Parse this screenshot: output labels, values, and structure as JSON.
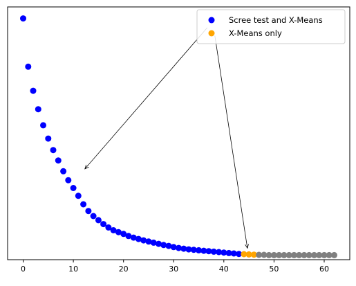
{
  "chart_data": {
    "type": "scatter",
    "title": "",
    "xlabel": "",
    "ylabel": "",
    "xlim": [
      -3.1,
      65.1
    ],
    "ylim": [
      -0.05,
      1.05
    ],
    "xticks": [
      0,
      10,
      20,
      30,
      40,
      50,
      60
    ],
    "grid": false,
    "legend_position": "top-right",
    "series": [
      {
        "name": "Scree test and X-Means",
        "color": "#0000ff",
        "points": [
          [
            0,
            1.0
          ],
          [
            1,
            0.79
          ],
          [
            2,
            0.685
          ],
          [
            3,
            0.605
          ],
          [
            4,
            0.535
          ],
          [
            5,
            0.477
          ],
          [
            6,
            0.427
          ],
          [
            7,
            0.382
          ],
          [
            8,
            0.335
          ],
          [
            9,
            0.296
          ],
          [
            10,
            0.262
          ],
          [
            11,
            0.228
          ],
          [
            12,
            0.191
          ],
          [
            13,
            0.162
          ],
          [
            14,
            0.14
          ],
          [
            15,
            0.122
          ],
          [
            16,
            0.105
          ],
          [
            17,
            0.09
          ],
          [
            18,
            0.078
          ],
          [
            19,
            0.07
          ],
          [
            20,
            0.062
          ],
          [
            21,
            0.053
          ],
          [
            22,
            0.046
          ],
          [
            23,
            0.04
          ],
          [
            24,
            0.034
          ],
          [
            25,
            0.029
          ],
          [
            26,
            0.024
          ],
          [
            27,
            0.019
          ],
          [
            28,
            0.014
          ],
          [
            29,
            0.01
          ],
          [
            30,
            0.005
          ],
          [
            31,
            0.001
          ],
          [
            32,
            -0.002
          ],
          [
            33,
            -0.005
          ],
          [
            34,
            -0.007
          ],
          [
            35,
            -0.009
          ],
          [
            36,
            -0.011
          ],
          [
            37,
            -0.013
          ],
          [
            38,
            -0.015
          ],
          [
            39,
            -0.017
          ],
          [
            40,
            -0.019
          ],
          [
            41,
            -0.021
          ],
          [
            42,
            -0.023
          ],
          [
            43,
            -0.025
          ]
        ]
      },
      {
        "name": "X-Means only",
        "color": "#ffa500",
        "points": [
          [
            44,
            -0.026
          ],
          [
            45,
            -0.027
          ],
          [
            46,
            -0.028
          ]
        ]
      },
      {
        "name": "",
        "color": "#808080",
        "points": [
          [
            47,
            -0.029
          ],
          [
            48,
            -0.029
          ],
          [
            49,
            -0.03
          ],
          [
            50,
            -0.03
          ],
          [
            51,
            -0.03
          ],
          [
            52,
            -0.03
          ],
          [
            53,
            -0.03
          ],
          [
            54,
            -0.03
          ],
          [
            55,
            -0.03
          ],
          [
            56,
            -0.03
          ],
          [
            57,
            -0.03
          ],
          [
            58,
            -0.03
          ],
          [
            59,
            -0.03
          ],
          [
            60,
            -0.03
          ],
          [
            61,
            -0.03
          ],
          [
            62,
            -0.03
          ]
        ]
      }
    ],
    "annotations": [
      {
        "text": "",
        "from": [
          36.7,
          0.96
        ],
        "to": [
          12.3,
          0.345
        ]
      },
      {
        "text": "",
        "from": [
          38.2,
          0.925
        ],
        "to": [
          44.7,
          0.0
        ]
      }
    ]
  }
}
